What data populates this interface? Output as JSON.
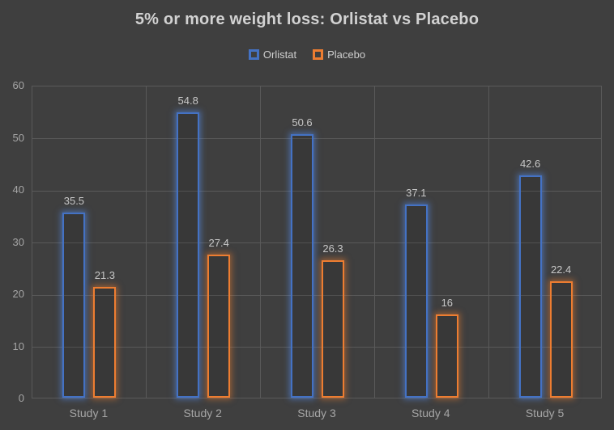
{
  "chart_data": {
    "type": "bar",
    "title": "5% or more weight loss: Orlistat vs Placebo",
    "categories": [
      "Study 1",
      "Study 2",
      "Study 3",
      "Study 4",
      "Study 5"
    ],
    "series": [
      {
        "name": "Orlistat",
        "color": "#4472C4",
        "values": [
          35.5,
          54.8,
          50.6,
          37.1,
          42.6
        ],
        "labels": [
          "35.5",
          "54.8",
          "50.6",
          "37.1",
          "42.6"
        ]
      },
      {
        "name": "Placebo",
        "color": "#ED7D31",
        "values": [
          21.3,
          27.4,
          26.3,
          16,
          22.4
        ],
        "labels": [
          "21.3",
          "27.4",
          "26.3",
          "16",
          "22.4"
        ]
      }
    ],
    "xlabel": "",
    "ylabel": "",
    "ylim": [
      0,
      60
    ],
    "yticks": [
      0,
      10,
      20,
      30,
      40,
      50,
      60
    ],
    "grid": true,
    "legend_position": "top",
    "bar_style": "hollow-outline-glow",
    "colors": {
      "background": "#3F3F3F",
      "gridline": "#5A5A5A",
      "axis_text": "#A6A6A6",
      "data_label_text": "#C8C8C8",
      "title_text": "#D2D2D2",
      "legend_text": "#CFCFCF"
    }
  }
}
